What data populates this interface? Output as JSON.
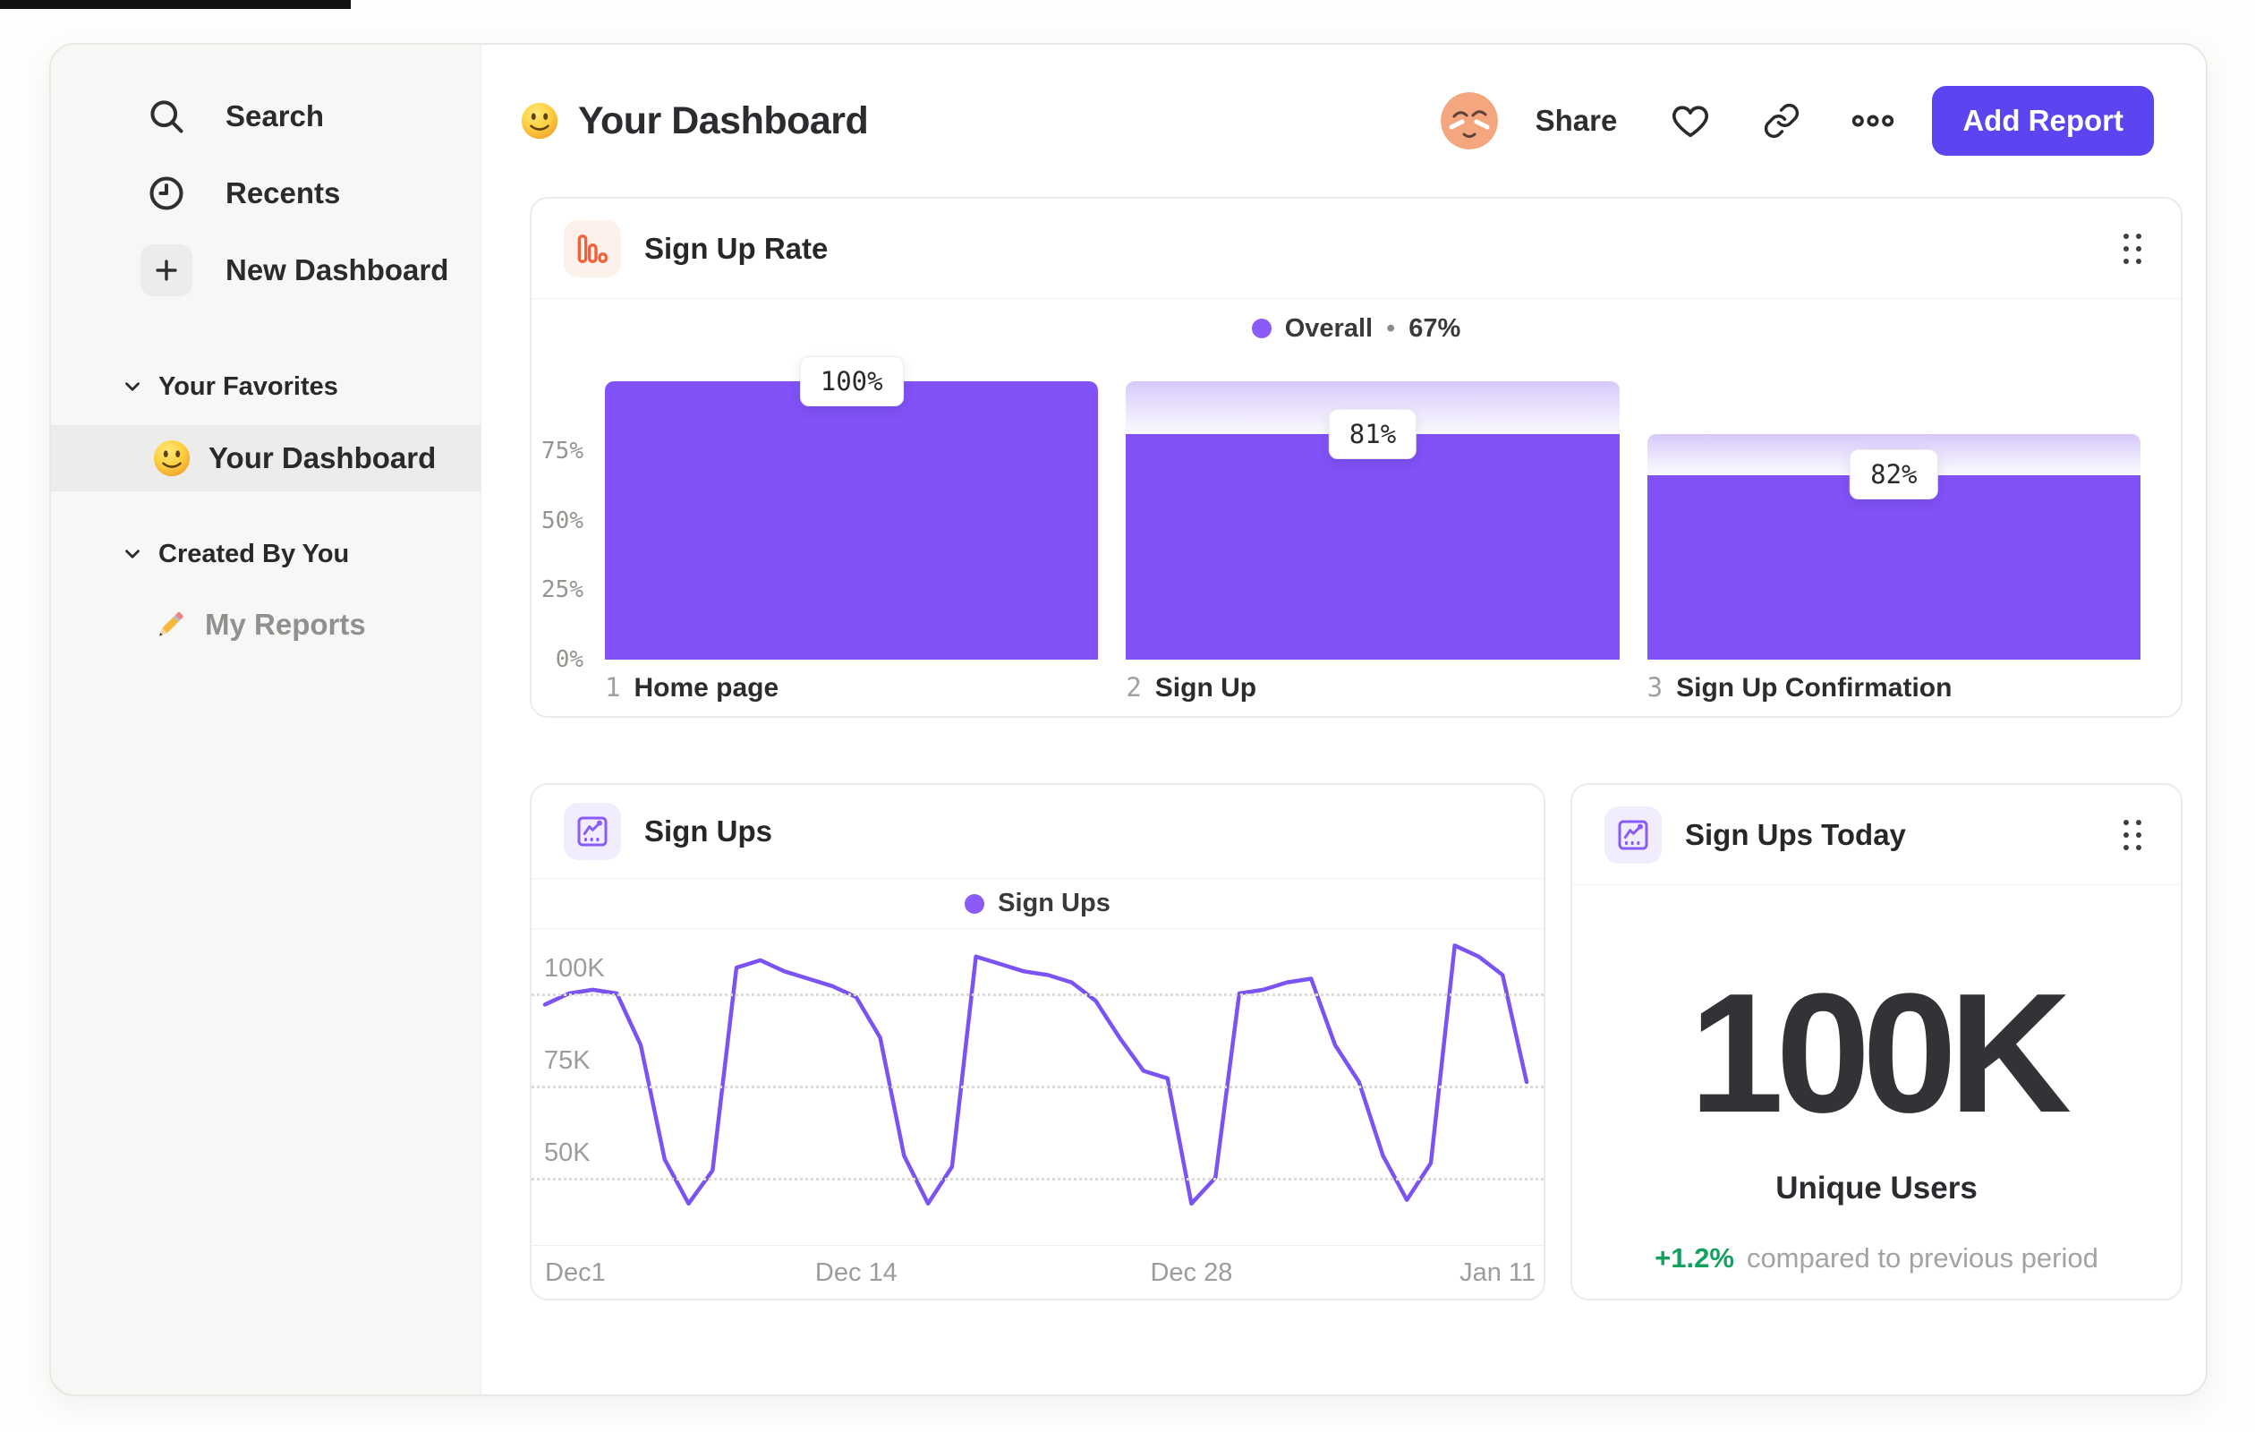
{
  "sidebar": {
    "nav": [
      {
        "icon": "search-icon",
        "label": "Search"
      },
      {
        "icon": "recents-clock-icon",
        "label": "Recents"
      },
      {
        "icon": "plus-icon",
        "label": "New Dashboard"
      }
    ],
    "sections": [
      {
        "label": "Your Favorites",
        "items": [
          {
            "emoji": "slightly-smiling-face",
            "label": "Your Dashboard",
            "selected": true
          }
        ]
      },
      {
        "label": "Created By You",
        "items": [
          {
            "emoji": "pencil",
            "label": "My Reports",
            "selected": false
          }
        ]
      }
    ]
  },
  "header": {
    "emoji": "slightly-smiling-face",
    "title": "Your Dashboard",
    "share_label": "Share",
    "add_report_label": "Add Report"
  },
  "cards": {
    "funnel": {
      "title": "Sign Up Rate",
      "legend_series": "Overall",
      "legend_separator": "•",
      "legend_value": "67%"
    },
    "line": {
      "title": "Sign Ups",
      "legend_series": "Sign Ups"
    },
    "today": {
      "title": "Sign Ups Today",
      "value": "100K",
      "label": "Unique Users",
      "delta": "+1.2%",
      "delta_note": "compared to previous period"
    }
  },
  "colors": {
    "accent_purple": "#5a45f0",
    "bar_purple": "#8152f7",
    "line_purple": "#7b53f3",
    "legend_dot": "#8a5bf6",
    "icon_orange": "#f0603a",
    "icon_purple": "#8a5cf6",
    "positive_green": "#12a15e"
  },
  "chart_data": [
    {
      "id": "sign_up_rate_funnel",
      "type": "bar",
      "subtype": "funnel",
      "title": "Sign Up Rate",
      "legend": "Overall",
      "overall_conversion": "67%",
      "ylim": [
        0,
        108
      ],
      "y_ticks": [
        {
          "label": "75%",
          "value": 75
        },
        {
          "label": "50%",
          "value": 50
        },
        {
          "label": "25%",
          "value": 25
        },
        {
          "label": "0%",
          "value": 0
        }
      ],
      "steps": [
        {
          "index": "1",
          "label": "Home page",
          "step_conversion_label": "100%",
          "overall_pct": 100,
          "prev_overall_pct": 100
        },
        {
          "index": "2",
          "label": "Sign Up",
          "step_conversion_label": "81%",
          "overall_pct": 81,
          "prev_overall_pct": 100
        },
        {
          "index": "3",
          "label": "Sign Up Confirmation",
          "step_conversion_label": "82%",
          "overall_pct": 66.4,
          "prev_overall_pct": 81
        }
      ]
    },
    {
      "id": "sign_ups_line",
      "type": "line",
      "title": "Sign Ups",
      "legend": "Sign Ups",
      "unit": "K",
      "ylim": [
        35,
        118
      ],
      "y_ticks": [
        {
          "label": "100K",
          "value": 100
        },
        {
          "label": "75K",
          "value": 75
        },
        {
          "label": "50K",
          "value": 50
        }
      ],
      "x_tick_labels": [
        "Dec1",
        "Dec 14",
        "Dec 28",
        "Jan 11"
      ],
      "x_tick_days": [
        0,
        13,
        27,
        41
      ],
      "series": [
        {
          "name": "Sign Ups",
          "values": [
            97,
            100,
            101,
            100,
            86,
            55,
            43,
            52,
            107,
            109,
            106,
            104,
            102,
            99,
            88,
            56,
            43,
            53,
            110,
            108,
            106,
            105,
            103,
            98,
            88,
            79,
            77,
            43,
            50,
            100,
            101,
            103,
            104,
            86,
            76,
            56,
            44,
            54,
            113,
            110,
            105,
            76
          ]
        }
      ]
    }
  ]
}
